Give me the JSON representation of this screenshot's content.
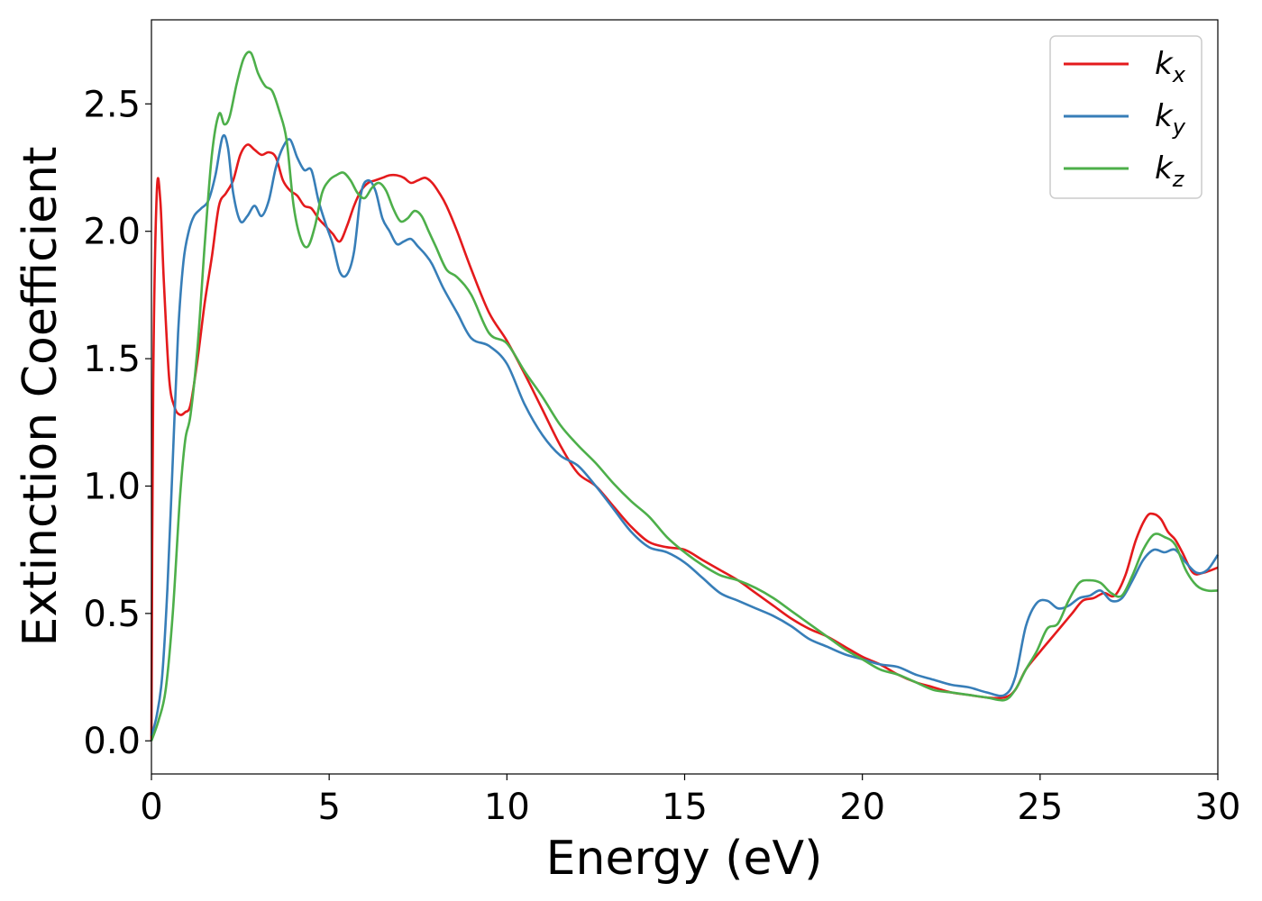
{
  "chart_data": {
    "type": "line",
    "xlabel": "Energy (eV)",
    "ylabel": "Extinction Coefficient",
    "xlim": [
      0,
      30
    ],
    "ylim": [
      -0.13,
      2.83
    ],
    "xticks": [
      0,
      5,
      10,
      15,
      20,
      25,
      30
    ],
    "xtick_labels": [
      "0",
      "5",
      "10",
      "15",
      "20",
      "25",
      "30"
    ],
    "yticks": [
      0.0,
      0.5,
      1.0,
      1.5,
      2.0,
      2.5
    ],
    "ytick_labels": [
      "0.0",
      "0.5",
      "1.0",
      "1.5",
      "2.0",
      "2.5"
    ],
    "grid": false,
    "legend_position": "top-right",
    "series": [
      {
        "name": "k",
        "subscript": "x",
        "color": "#e41a1c",
        "x": [
          0,
          0.05,
          0.15,
          0.25,
          0.35,
          0.5,
          0.65,
          0.8,
          0.95,
          1.1,
          1.3,
          1.5,
          1.7,
          1.9,
          2.1,
          2.3,
          2.5,
          2.7,
          2.9,
          3.1,
          3.3,
          3.5,
          3.7,
          3.9,
          4.1,
          4.3,
          4.5,
          4.7,
          4.9,
          5.1,
          5.3,
          5.5,
          5.7,
          5.9,
          6.1,
          6.3,
          6.5,
          6.7,
          6.9,
          7.1,
          7.3,
          7.5,
          7.7,
          7.9,
          8.1,
          8.3,
          8.6,
          9.0,
          9.5,
          10.0,
          10.5,
          11.0,
          11.5,
          12.0,
          12.5,
          13.0,
          13.5,
          14.0,
          14.5,
          15.0,
          15.5,
          16.0,
          16.5,
          17.0,
          17.5,
          18.0,
          18.5,
          19.0,
          19.5,
          20.0,
          20.5,
          21.0,
          21.5,
          22.0,
          22.5,
          23.0,
          23.5,
          24.0,
          24.3,
          24.6,
          25.0,
          25.3,
          25.6,
          25.9,
          26.2,
          26.5,
          26.8,
          27.1,
          27.4,
          27.7,
          28.0,
          28.2,
          28.4,
          28.6,
          28.8,
          29.0,
          29.3,
          29.6,
          30.0
        ],
        "values": [
          0.0,
          1.4,
          2.15,
          2.12,
          1.8,
          1.42,
          1.31,
          1.28,
          1.29,
          1.32,
          1.5,
          1.72,
          1.9,
          2.1,
          2.15,
          2.2,
          2.3,
          2.34,
          2.32,
          2.3,
          2.31,
          2.29,
          2.2,
          2.16,
          2.14,
          2.1,
          2.09,
          2.05,
          2.02,
          1.99,
          1.96,
          2.02,
          2.1,
          2.16,
          2.19,
          2.2,
          2.21,
          2.22,
          2.22,
          2.21,
          2.19,
          2.2,
          2.21,
          2.19,
          2.15,
          2.1,
          2.0,
          1.85,
          1.68,
          1.57,
          1.44,
          1.3,
          1.16,
          1.05,
          1.0,
          0.92,
          0.84,
          0.78,
          0.76,
          0.75,
          0.71,
          0.67,
          0.63,
          0.58,
          0.53,
          0.48,
          0.44,
          0.41,
          0.37,
          0.33,
          0.3,
          0.26,
          0.23,
          0.21,
          0.19,
          0.18,
          0.17,
          0.17,
          0.2,
          0.28,
          0.35,
          0.4,
          0.45,
          0.5,
          0.55,
          0.56,
          0.58,
          0.57,
          0.65,
          0.79,
          0.88,
          0.89,
          0.87,
          0.82,
          0.79,
          0.74,
          0.66,
          0.66,
          0.68
        ]
      },
      {
        "name": "k",
        "subscript": "y",
        "color": "#377eb8",
        "x": [
          0,
          0.15,
          0.3,
          0.45,
          0.6,
          0.75,
          0.9,
          1.05,
          1.2,
          1.4,
          1.6,
          1.8,
          2.0,
          2.15,
          2.3,
          2.5,
          2.7,
          2.9,
          3.1,
          3.3,
          3.5,
          3.7,
          3.9,
          4.1,
          4.3,
          4.5,
          4.7,
          4.9,
          5.1,
          5.3,
          5.5,
          5.7,
          5.9,
          6.1,
          6.3,
          6.5,
          6.7,
          6.9,
          7.1,
          7.3,
          7.5,
          7.7,
          7.9,
          8.2,
          8.6,
          9.0,
          9.5,
          10.0,
          10.5,
          11.0,
          11.5,
          12.0,
          12.5,
          13.0,
          13.5,
          14.0,
          14.5,
          15.0,
          15.5,
          16.0,
          16.5,
          17.0,
          17.5,
          18.0,
          18.5,
          19.0,
          19.5,
          20.0,
          20.5,
          21.0,
          21.5,
          22.0,
          22.5,
          23.0,
          23.5,
          24.0,
          24.3,
          24.6,
          24.9,
          25.2,
          25.5,
          25.8,
          26.1,
          26.4,
          26.7,
          27.0,
          27.3,
          27.6,
          27.9,
          28.2,
          28.5,
          28.8,
          29.1,
          29.4,
          29.7,
          30.0
        ],
        "values": [
          0.02,
          0.1,
          0.25,
          0.6,
          1.1,
          1.6,
          1.88,
          2.0,
          2.06,
          2.09,
          2.12,
          2.22,
          2.37,
          2.33,
          2.15,
          2.04,
          2.06,
          2.1,
          2.06,
          2.12,
          2.25,
          2.33,
          2.36,
          2.29,
          2.24,
          2.24,
          2.12,
          2.03,
          1.95,
          1.84,
          1.83,
          1.92,
          2.15,
          2.2,
          2.16,
          2.05,
          2.0,
          1.95,
          1.96,
          1.97,
          1.94,
          1.91,
          1.87,
          1.78,
          1.68,
          1.58,
          1.55,
          1.48,
          1.32,
          1.2,
          1.12,
          1.08,
          1.0,
          0.91,
          0.82,
          0.76,
          0.74,
          0.7,
          0.64,
          0.58,
          0.55,
          0.52,
          0.49,
          0.45,
          0.4,
          0.37,
          0.34,
          0.32,
          0.3,
          0.29,
          0.26,
          0.24,
          0.22,
          0.21,
          0.19,
          0.18,
          0.25,
          0.45,
          0.54,
          0.55,
          0.52,
          0.53,
          0.56,
          0.57,
          0.59,
          0.55,
          0.56,
          0.63,
          0.71,
          0.75,
          0.74,
          0.75,
          0.7,
          0.66,
          0.67,
          0.73
        ]
      },
      {
        "name": "k",
        "subscript": "z",
        "color": "#4daf4a",
        "x": [
          0,
          0.2,
          0.4,
          0.6,
          0.8,
          0.95,
          1.1,
          1.3,
          1.5,
          1.7,
          1.9,
          2.05,
          2.2,
          2.4,
          2.6,
          2.8,
          3.0,
          3.2,
          3.4,
          3.6,
          3.8,
          4.0,
          4.2,
          4.4,
          4.6,
          4.8,
          5.0,
          5.2,
          5.4,
          5.6,
          5.8,
          6.0,
          6.2,
          6.4,
          6.6,
          6.8,
          7.0,
          7.2,
          7.4,
          7.6,
          7.8,
          8.0,
          8.3,
          8.6,
          9.0,
          9.5,
          10.0,
          10.5,
          11.0,
          11.5,
          12.0,
          12.5,
          13.0,
          13.5,
          14.0,
          14.5,
          15.0,
          15.5,
          16.0,
          16.5,
          17.0,
          17.5,
          18.0,
          18.5,
          19.0,
          19.5,
          20.0,
          20.5,
          21.0,
          21.5,
          22.0,
          22.5,
          23.0,
          23.5,
          24.0,
          24.3,
          24.6,
          24.9,
          25.2,
          25.5,
          25.8,
          26.1,
          26.4,
          26.7,
          27.0,
          27.3,
          27.6,
          27.9,
          28.2,
          28.5,
          28.8,
          29.1,
          29.4,
          29.7,
          30.0
        ],
        "values": [
          0.0,
          0.08,
          0.2,
          0.5,
          0.95,
          1.18,
          1.28,
          1.55,
          1.95,
          2.3,
          2.46,
          2.42,
          2.45,
          2.58,
          2.68,
          2.7,
          2.62,
          2.57,
          2.55,
          2.47,
          2.36,
          2.1,
          1.97,
          1.94,
          2.02,
          2.15,
          2.2,
          2.22,
          2.23,
          2.2,
          2.15,
          2.13,
          2.17,
          2.19,
          2.16,
          2.09,
          2.04,
          2.05,
          2.08,
          2.06,
          2.0,
          1.94,
          1.85,
          1.82,
          1.75,
          1.6,
          1.56,
          1.45,
          1.35,
          1.24,
          1.16,
          1.09,
          1.01,
          0.94,
          0.88,
          0.8,
          0.74,
          0.69,
          0.65,
          0.63,
          0.6,
          0.56,
          0.51,
          0.46,
          0.41,
          0.36,
          0.32,
          0.28,
          0.26,
          0.23,
          0.2,
          0.19,
          0.18,
          0.17,
          0.16,
          0.2,
          0.28,
          0.35,
          0.44,
          0.46,
          0.55,
          0.62,
          0.63,
          0.62,
          0.58,
          0.57,
          0.65,
          0.75,
          0.81,
          0.8,
          0.77,
          0.67,
          0.61,
          0.59,
          0.59
        ]
      }
    ]
  }
}
